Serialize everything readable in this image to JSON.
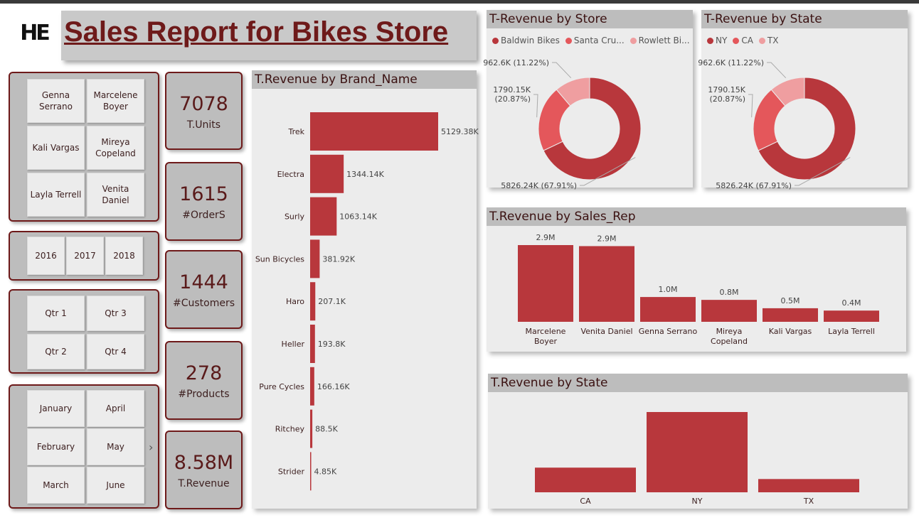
{
  "logo": "HE",
  "title": "Sales Report for Bikes Store",
  "colors": {
    "primary": "#b8373c",
    "secondary": "#e4575b",
    "tertiary": "#ef9ea0",
    "accent": "#6e1a1a"
  },
  "slicers": {
    "sales_reps": [
      "Genna Serrano",
      "Marcelene Boyer",
      "Kali Vargas",
      "Mireya Copeland",
      "Layla Terrell",
      "Venita Daniel"
    ],
    "years": [
      "2016",
      "2017",
      "2018"
    ],
    "quarters": [
      "Qtr 1",
      "Qtr 3",
      "Qtr 2",
      "Qtr 4"
    ],
    "months": [
      "January",
      "April",
      "February",
      "May",
      "March",
      "June"
    ],
    "chevron_icon": "chevron-right-icon"
  },
  "kpis": [
    {
      "value": "7078",
      "label": "T.Units"
    },
    {
      "value": "1615",
      "label": "#OrderS"
    },
    {
      "value": "1444",
      "label": "#Customers"
    },
    {
      "value": "278",
      "label": "#Products"
    },
    {
      "value": "8.58M",
      "label": "T.Revenue"
    }
  ],
  "chart_data": [
    {
      "type": "bar",
      "orientation": "horizontal",
      "title": "T.Revenue by Brand_Name",
      "categories": [
        "Trek",
        "Electra",
        "Surly",
        "Sun Bicycles",
        "Haro",
        "Heller",
        "Pure Cycles",
        "Ritchey",
        "Strider"
      ],
      "values": [
        5129.38,
        1344.14,
        1063.14,
        381.92,
        207.1,
        193.8,
        166.16,
        88.5,
        4.85
      ],
      "data_labels": [
        "5129.38K",
        "1344.14K",
        "1063.14K",
        "381.92K",
        "207.1K",
        "193.8K",
        "166.16K",
        "88.5K",
        "4.85K"
      ],
      "unit": "K"
    },
    {
      "type": "pie",
      "title": "T-Revenue by Store",
      "legend": [
        "Baldwin Bikes",
        "Santa Cru...",
        "Rowlett Bi..."
      ],
      "values": [
        5826.24,
        1790.15,
        962.6
      ],
      "data_labels": [
        "5826.24K (67.91%)",
        "1790.15K (20.87%)",
        "962.6K (11.22%)"
      ],
      "colors": [
        "#b8373c",
        "#e4575b",
        "#ef9ea0"
      ]
    },
    {
      "type": "pie",
      "title": "T-Revenue by State",
      "legend": [
        "NY",
        "CA",
        "TX"
      ],
      "values": [
        5826.24,
        1790.15,
        962.6
      ],
      "data_labels": [
        "5826.24K (67.91%)",
        "1790.15K (20.87%)",
        "962.6K (11.22%)"
      ],
      "colors": [
        "#b8373c",
        "#e4575b",
        "#ef9ea0"
      ]
    },
    {
      "type": "bar",
      "title": "T.Revenue by Sales_Rep",
      "categories": [
        "Marcelene Boyer",
        "Venita Daniel",
        "Genna Serrano",
        "Mireya Copeland",
        "Kali Vargas",
        "Layla Terrell"
      ],
      "values": [
        2.94,
        2.9,
        0.95,
        0.84,
        0.52,
        0.43
      ],
      "data_labels": [
        "2.9M",
        "2.9M",
        "1.0M",
        "0.8M",
        "0.5M",
        "0.4M"
      ],
      "unit": "M"
    },
    {
      "type": "bar",
      "title": "T.Revenue by State",
      "categories": [
        "CA",
        "NY",
        "TX"
      ],
      "values": [
        1790.15,
        5826.24,
        962.6
      ],
      "unit": "K"
    }
  ]
}
